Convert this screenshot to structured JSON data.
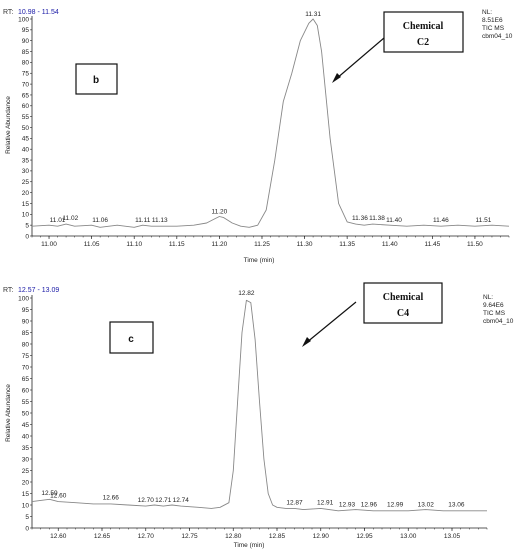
{
  "chart_data": [
    {
      "type": "line",
      "panel_label": "b",
      "rt_label": "RT:",
      "rt_range": "10.98 - 11.54",
      "xlabel": "Time (min)",
      "ylabel": "Relative Abundance",
      "xlim": [
        10.98,
        11.54
      ],
      "ylim": [
        0,
        100
      ],
      "x_ticks": [
        "11.00",
        "11.05",
        "11.10",
        "11.15",
        "11.20",
        "11.25",
        "11.30",
        "11.35",
        "11.40",
        "11.45",
        "11.50"
      ],
      "y_ticks": [
        "0",
        "5",
        "10",
        "15",
        "20",
        "25",
        "30",
        "35",
        "40",
        "45",
        "50",
        "55",
        "60",
        "65",
        "70",
        "75",
        "80",
        "85",
        "90",
        "95",
        "100"
      ],
      "info_lines": [
        "NL:",
        "8.51E6",
        "TIC  MS",
        "cbm04_10"
      ],
      "callout_lines": [
        "Chemical",
        "C2"
      ],
      "peak_labels": [
        {
          "text": "11.01",
          "x": 11.01,
          "y": 5
        },
        {
          "text": "11.02",
          "x": 11.025,
          "y": 6
        },
        {
          "text": "11.06",
          "x": 11.06,
          "y": 5
        },
        {
          "text": "11.11",
          "x": 11.11,
          "y": 5
        },
        {
          "text": "11.13",
          "x": 11.13,
          "y": 5
        },
        {
          "text": "11.20",
          "x": 11.2,
          "y": 9
        },
        {
          "text": "11.31",
          "x": 11.31,
          "y": 100
        },
        {
          "text": "11.36",
          "x": 11.365,
          "y": 6
        },
        {
          "text": "11.38",
          "x": 11.385,
          "y": 6
        },
        {
          "text": "11.40",
          "x": 11.405,
          "y": 5
        },
        {
          "text": "11.46",
          "x": 11.46,
          "y": 5
        },
        {
          "text": "11.51",
          "x": 11.51,
          "y": 5
        }
      ],
      "series": [
        {
          "x": [
            10.98,
            11.0,
            11.01,
            11.02,
            11.03,
            11.05,
            11.06,
            11.08,
            11.1,
            11.11,
            11.12,
            11.13,
            11.15,
            11.17,
            11.185,
            11.195,
            11.2,
            11.205,
            11.215,
            11.225,
            11.235,
            11.245,
            11.255,
            11.265,
            11.275,
            11.285,
            11.295,
            11.305,
            11.31,
            11.315,
            11.32,
            11.33,
            11.34,
            11.35,
            11.36,
            11.37,
            11.38,
            11.4,
            11.42,
            11.44,
            11.46,
            11.48,
            11.5,
            11.52,
            11.54
          ],
          "y": [
            4.5,
            5,
            4.5,
            5.5,
            4.5,
            5,
            4,
            5,
            4,
            5,
            4.5,
            4.5,
            4.5,
            5,
            6,
            8,
            9,
            8.5,
            6,
            4.5,
            4,
            5,
            12,
            35,
            62,
            75,
            90,
            98,
            100,
            97,
            85,
            45,
            15,
            6.5,
            5.5,
            5,
            5.5,
            5,
            4.5,
            5,
            4.5,
            5,
            4.5,
            5,
            4.5
          ]
        }
      ]
    },
    {
      "type": "line",
      "panel_label": "c",
      "rt_label": "RT:",
      "rt_range": "12.57 - 13.09",
      "xlabel": "Time (min)",
      "ylabel": "Relative Abundance",
      "xlim": [
        12.57,
        13.09
      ],
      "ylim": [
        0,
        100
      ],
      "x_ticks": [
        "12.60",
        "12.65",
        "12.70",
        "12.75",
        "12.80",
        "12.85",
        "12.90",
        "12.95",
        "13.00",
        "13.05"
      ],
      "y_ticks": [
        "0",
        "5",
        "10",
        "15",
        "20",
        "25",
        "30",
        "35",
        "40",
        "45",
        "50",
        "55",
        "60",
        "65",
        "70",
        "75",
        "80",
        "85",
        "90",
        "95",
        "100"
      ],
      "info_lines": [
        "NL:",
        "9.64E6",
        "TIC  MS",
        "cbm04_10"
      ],
      "callout_lines": [
        "Chemical",
        "C4"
      ],
      "peak_labels": [
        {
          "text": "12.59",
          "x": 12.59,
          "y": 13
        },
        {
          "text": "12.60",
          "x": 12.6,
          "y": 12
        },
        {
          "text": "12.66",
          "x": 12.66,
          "y": 11
        },
        {
          "text": "12.70",
          "x": 12.7,
          "y": 10
        },
        {
          "text": "12.71",
          "x": 12.72,
          "y": 10
        },
        {
          "text": "12.74",
          "x": 12.74,
          "y": 10
        },
        {
          "text": "12.82",
          "x": 12.815,
          "y": 100
        },
        {
          "text": "12.87",
          "x": 12.87,
          "y": 9
        },
        {
          "text": "12.91",
          "x": 12.905,
          "y": 9
        },
        {
          "text": "12.93",
          "x": 12.93,
          "y": 8
        },
        {
          "text": "12.96",
          "x": 12.955,
          "y": 8
        },
        {
          "text": "12.99",
          "x": 12.985,
          "y": 8
        },
        {
          "text": "13.02",
          "x": 13.02,
          "y": 8
        },
        {
          "text": "13.06",
          "x": 13.055,
          "y": 8
        }
      ],
      "series": [
        {
          "x": [
            12.57,
            12.58,
            12.59,
            12.6,
            12.62,
            12.64,
            12.66,
            12.68,
            12.7,
            12.71,
            12.72,
            12.73,
            12.74,
            12.76,
            12.775,
            12.785,
            12.795,
            12.8,
            12.805,
            12.81,
            12.815,
            12.82,
            12.825,
            12.83,
            12.835,
            12.84,
            12.845,
            12.85,
            12.86,
            12.87,
            12.88,
            12.9,
            12.92,
            12.94,
            12.96,
            12.98,
            13.0,
            13.02,
            13.04,
            13.06,
            13.08,
            13.09
          ],
          "y": [
            11.5,
            12,
            12.5,
            11.5,
            11,
            10.5,
            10.5,
            10,
            9.5,
            10,
            9.5,
            10,
            9.5,
            9,
            8.5,
            9,
            11,
            25,
            55,
            85,
            99,
            98,
            82,
            55,
            30,
            15,
            10,
            9,
            8.5,
            8.5,
            8,
            8.5,
            7.5,
            8,
            7.5,
            7.5,
            7.5,
            8,
            7.5,
            7.5,
            7.5,
            7.5
          ]
        }
      ]
    }
  ],
  "colors": {
    "line": "#888888",
    "rt_value": "#1a1aa6",
    "axis": "#222222"
  }
}
